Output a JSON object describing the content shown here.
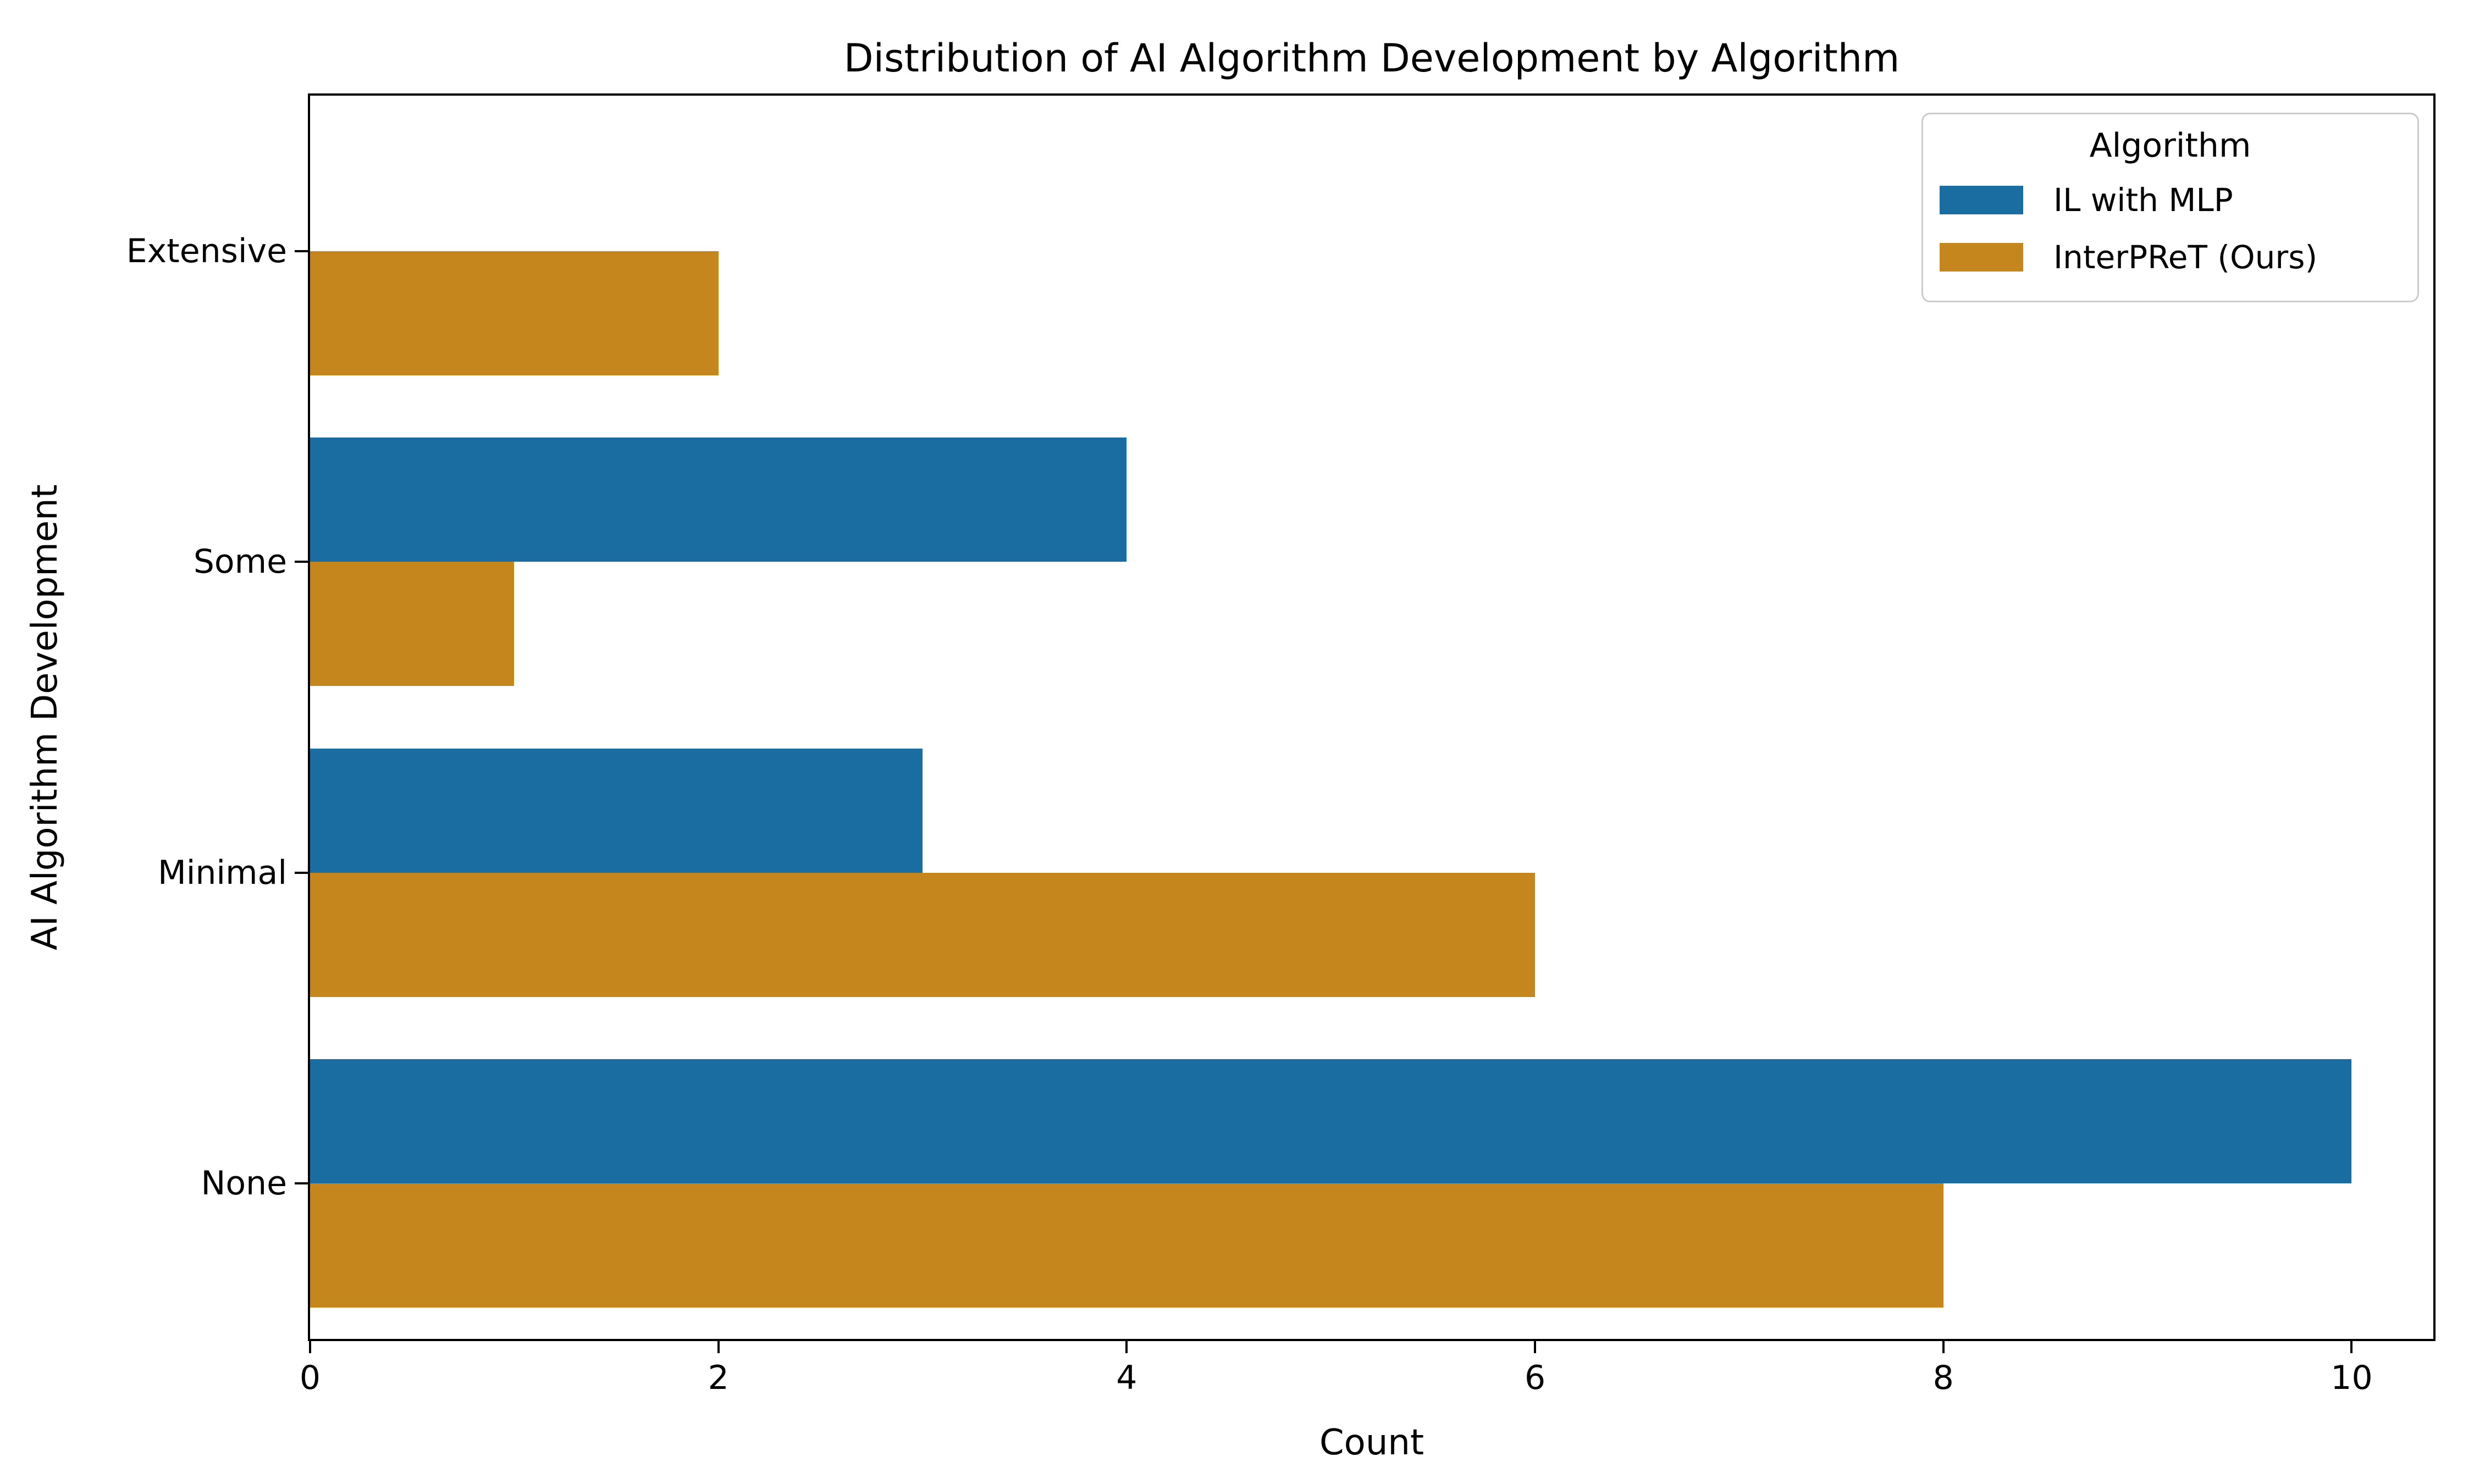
{
  "chart_data": {
    "type": "bar",
    "orientation": "horizontal",
    "title": "Distribution of AI Algorithm Development by Algorithm",
    "xlabel": "Count",
    "ylabel": "AI Algorithm Development",
    "categories": [
      "Extensive",
      "Some",
      "Minimal",
      "None"
    ],
    "series": [
      {
        "name": "IL with MLP",
        "color": "#1A6DA1",
        "values": [
          0,
          4,
          3,
          10
        ]
      },
      {
        "name": "InterPReT (Ours)",
        "color": "#C5871D",
        "values": [
          2,
          1,
          6,
          8
        ]
      }
    ],
    "xticks": [
      0,
      2,
      4,
      6,
      8,
      10
    ],
    "xlim": [
      0,
      10.4
    ],
    "legend_title": "Algorithm",
    "legend_position": "upper right",
    "grid": false,
    "background_color": "#ffffff",
    "text_color": "#000000"
  }
}
